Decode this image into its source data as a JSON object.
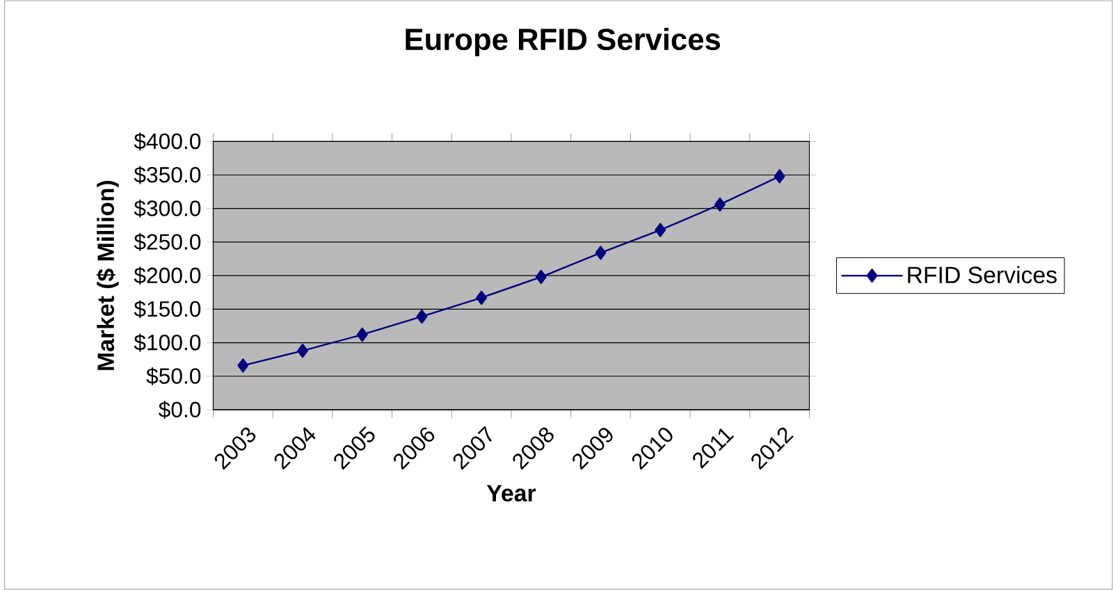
{
  "chart_data": {
    "type": "line",
    "title": "Europe RFID Services",
    "xlabel": "Year",
    "ylabel": "Market ($ Million)",
    "categories": [
      "2003",
      "2004",
      "2005",
      "2006",
      "2007",
      "2008",
      "2009",
      "2010",
      "2011",
      "2012"
    ],
    "series": [
      {
        "name": "RFID Services",
        "color": "#000080",
        "values": [
          66,
          88,
          112,
          139,
          167,
          198,
          234,
          268,
          306,
          348
        ]
      }
    ],
    "ylim": [
      0,
      400
    ],
    "yticks": [
      {
        "value": 0,
        "label": "$0.0"
      },
      {
        "value": 50,
        "label": "$50.0"
      },
      {
        "value": 100,
        "label": "$100.0"
      },
      {
        "value": 150,
        "label": "$150.0"
      },
      {
        "value": 200,
        "label": "$200.0"
      },
      {
        "value": 250,
        "label": "$250.0"
      },
      {
        "value": 300,
        "label": "$300.0"
      },
      {
        "value": 350,
        "label": "$350.0"
      },
      {
        "value": 400,
        "label": "$400.0"
      }
    ],
    "grid": "y",
    "legend": "right",
    "marker": "diamond",
    "line_style": "solid"
  }
}
